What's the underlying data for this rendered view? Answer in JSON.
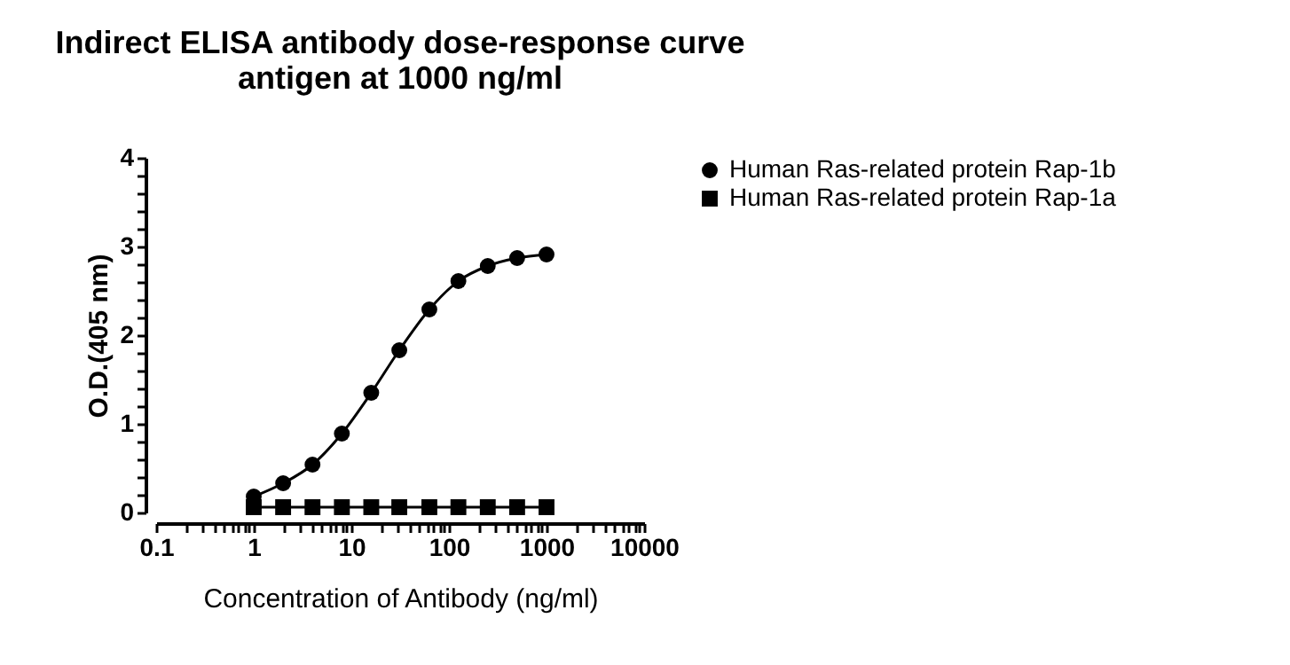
{
  "chart_data": {
    "type": "line",
    "title": "Indirect ELISA antibody dose-response curve\nantigen at 1000 ng/ml",
    "xlabel": "Concentration of Antibody (ng/ml)",
    "ylabel": "O.D.(405 nm)",
    "x": [
      1,
      2,
      4,
      8,
      16,
      31,
      63,
      125,
      250,
      500,
      1000
    ],
    "series": [
      {
        "name": "Human Ras-related protein Rap-1b",
        "color": "#000000",
        "marker": "circle",
        "values": [
          0.18,
          0.33,
          0.54,
          0.89,
          1.35,
          1.83,
          2.29,
          2.61,
          2.78,
          2.87,
          2.91
        ]
      },
      {
        "name": "Human Ras-related protein Rap-1a",
        "color": "#000000",
        "marker": "square",
        "values": [
          0.06,
          0.06,
          0.06,
          0.06,
          0.06,
          0.06,
          0.06,
          0.06,
          0.06,
          0.06,
          0.06
        ]
      }
    ],
    "log": "x",
    "xlim": [
      0.1,
      10000
    ],
    "xticks": [
      0.1,
      {
        "value": 0.2,
        "label": null
      },
      {
        "value": 0.3,
        "label": null
      },
      {
        "value": 0.4,
        "label": null
      },
      {
        "value": 0.5,
        "label": null
      },
      {
        "value": 0.6,
        "label": null
      },
      {
        "value": 0.7,
        "label": null
      },
      {
        "value": 0.8,
        "label": null
      },
      {
        "value": 0.9,
        "label": null
      },
      1,
      {
        "value": 2,
        "label": null
      },
      {
        "value": 3,
        "label": null
      },
      {
        "value": 4,
        "label": null
      },
      {
        "value": 5,
        "label": null
      },
      {
        "value": 6,
        "label": null
      },
      {
        "value": 7,
        "label": null
      },
      {
        "value": 8,
        "label": null
      },
      {
        "value": 9,
        "label": null
      },
      10,
      {
        "value": 20,
        "label": null
      },
      {
        "value": 30,
        "label": null
      },
      {
        "value": 40,
        "label": null
      },
      {
        "value": 50,
        "label": null
      },
      {
        "value": 60,
        "label": null
      },
      {
        "value": 70,
        "label": null
      },
      {
        "value": 80,
        "label": null
      },
      {
        "value": 90,
        "label": null
      },
      100,
      {
        "value": 200,
        "label": null
      },
      {
        "value": 300,
        "label": null
      },
      {
        "value": 400,
        "label": null
      },
      {
        "value": 500,
        "label": null
      },
      {
        "value": 600,
        "label": null
      },
      {
        "value": 700,
        "label": null
      },
      {
        "value": 800,
        "label": null
      },
      {
        "value": 900,
        "label": null
      },
      1000,
      {
        "value": 2000,
        "label": null
      },
      {
        "value": 3000,
        "label": null
      },
      {
        "value": 4000,
        "label": null
      },
      {
        "value": 5000,
        "label": null
      },
      {
        "value": 6000,
        "label": null
      },
      {
        "value": 7000,
        "label": null
      },
      {
        "value": 8000,
        "label": null
      },
      {
        "value": 9000,
        "label": null
      },
      10000
    ],
    "ylim": [
      0,
      4
    ],
    "yticks": [
      0,
      {
        "value": 0.2,
        "label": null
      },
      {
        "value": 0.4,
        "label": null
      },
      {
        "value": 0.6,
        "label": null
      },
      {
        "value": 0.8,
        "label": null
      },
      1,
      {
        "value": 1.2,
        "label": null
      },
      {
        "value": 1.4,
        "label": null
      },
      {
        "value": 1.6,
        "label": null
      },
      {
        "value": 1.8,
        "label": null
      },
      2,
      {
        "value": 2.2,
        "label": null
      },
      {
        "value": 2.4,
        "label": null
      },
      {
        "value": 2.6,
        "label": null
      },
      {
        "value": 2.8,
        "label": null
      },
      3,
      {
        "value": 3.2,
        "label": null
      },
      {
        "value": 3.4,
        "label": null
      },
      {
        "value": 3.6,
        "label": null
      },
      {
        "value": 3.8,
        "label": null
      },
      4
    ],
    "grid": false,
    "legend": "right",
    "line_style": "solid"
  }
}
